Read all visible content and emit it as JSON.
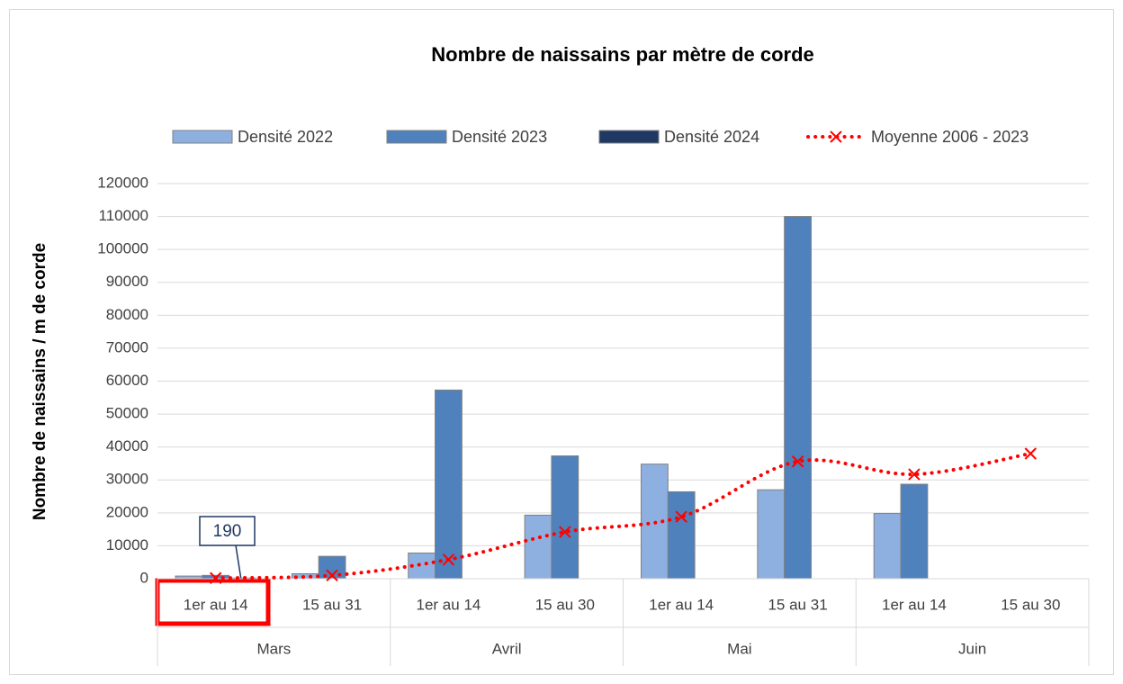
{
  "chart_data": {
    "type": "bar",
    "title": "Nombre de naissains par mètre de corde",
    "y_axis_label": "Nombre de naissains / m de corde",
    "categories": [
      "1er au 14",
      "15 au 31",
      "1er au 14",
      "15 au 30",
      "1er au 14",
      "15 au 31",
      "1er au 14",
      "15 au 30"
    ],
    "groups": [
      "Mars",
      "Avril",
      "Mai",
      "Juin"
    ],
    "series": [
      {
        "name": "Densité 2022",
        "type": "bar",
        "color": "#8eb0e0",
        "values": [
          800,
          1500,
          7800,
          19300,
          34800,
          27000,
          19800,
          null
        ]
      },
      {
        "name": "Densité 2023",
        "type": "bar",
        "color": "#4f81bd",
        "values": [
          1000,
          6800,
          57300,
          37300,
          26400,
          110000,
          28700,
          null
        ]
      },
      {
        "name": "Densité 2024",
        "type": "bar",
        "color": "#1f3864",
        "values": [
          190,
          null,
          null,
          null,
          null,
          null,
          null,
          null
        ]
      },
      {
        "name": "Moyenne 2006 - 2023",
        "type": "line",
        "color": "#ff0000",
        "values": [
          200,
          1000,
          5800,
          14200,
          18800,
          35600,
          31700,
          38000
        ]
      }
    ],
    "ylim": [
      0,
      120000
    ],
    "yticks": [
      0,
      10000,
      20000,
      30000,
      40000,
      50000,
      60000,
      70000,
      80000,
      90000,
      100000,
      110000,
      120000
    ],
    "grid": true
  }
}
